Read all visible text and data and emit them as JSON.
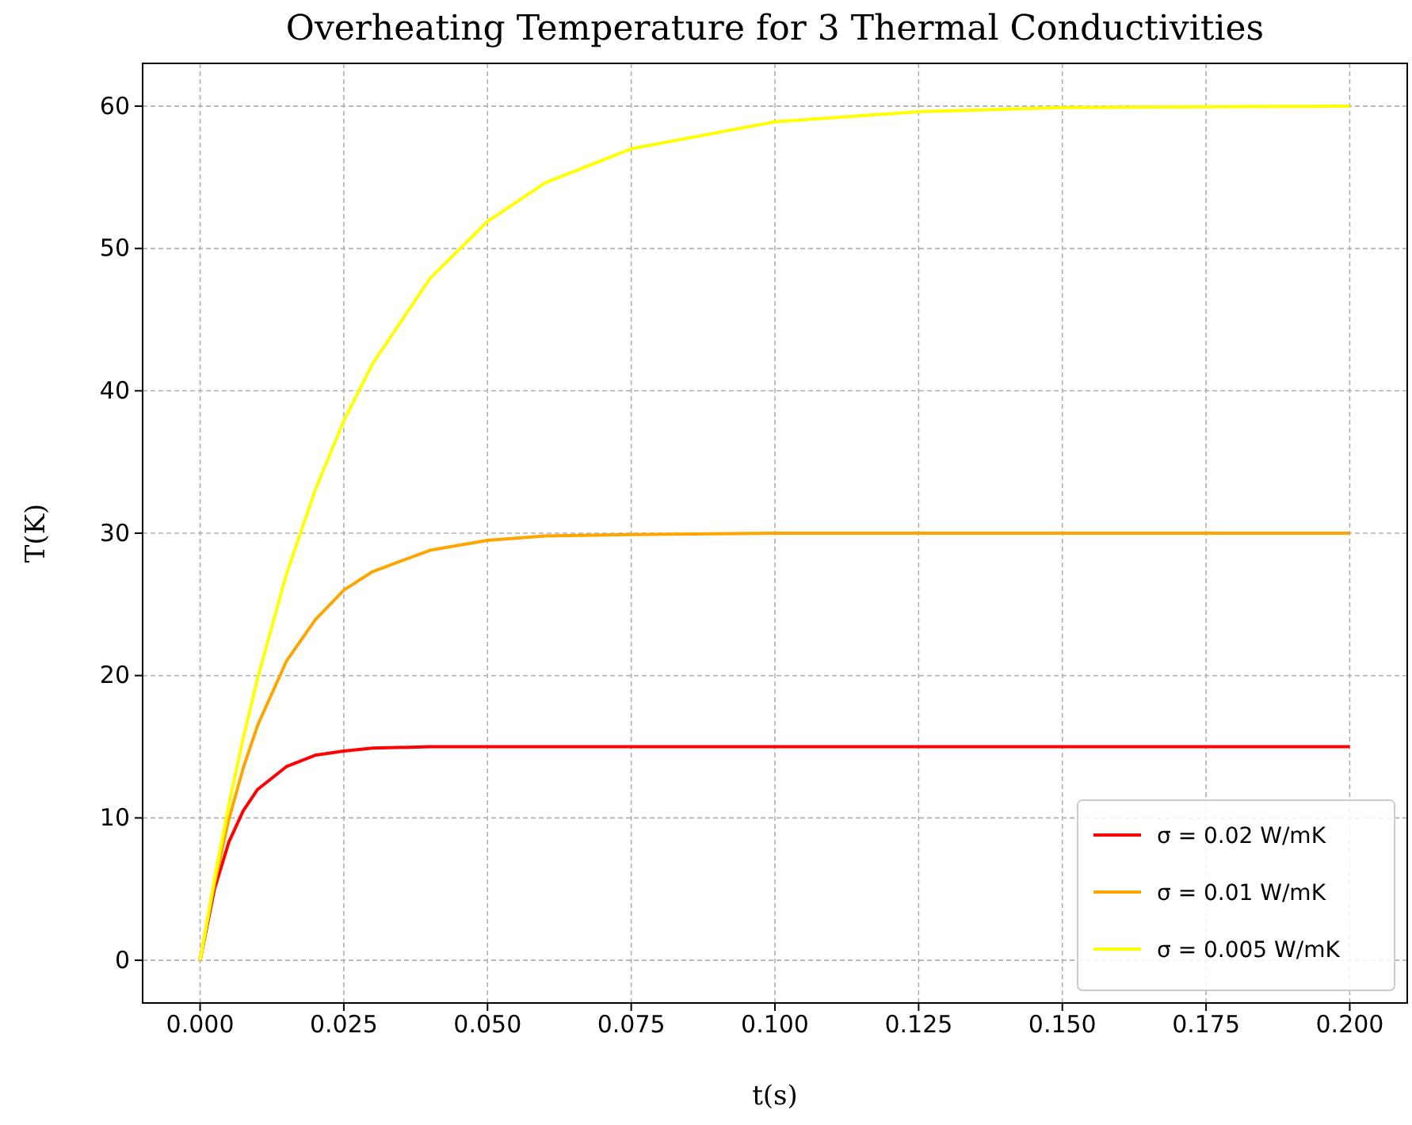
{
  "chart_data": {
    "type": "line",
    "title": "Overheating Temperature for 3 Thermal Conductivities",
    "xlabel": "t(s)",
    "ylabel": "T(K)",
    "x": [
      0,
      0.0025,
      0.005,
      0.0075,
      0.01,
      0.015,
      0.02,
      0.025,
      0.03,
      0.04,
      0.05,
      0.06,
      0.075,
      0.1,
      0.125,
      0.15,
      0.2
    ],
    "series": [
      {
        "name": "σ = 0.02 W/mK",
        "color": "#ff0000",
        "values": [
          0,
          5.0,
          8.3,
          10.5,
          12.0,
          13.6,
          14.4,
          14.7,
          14.9,
          15.0,
          15.0,
          15.0,
          15.0,
          15.0,
          15.0,
          15.0,
          15.0
        ]
      },
      {
        "name": "σ = 0.01 W/mK",
        "color": "#ffa500",
        "values": [
          0,
          5.4,
          9.9,
          13.5,
          16.5,
          21.0,
          23.9,
          26.0,
          27.3,
          28.8,
          29.5,
          29.8,
          29.9,
          30.0,
          30.0,
          30.0,
          30.0
        ]
      },
      {
        "name": "σ = 0.005 W/mK",
        "color": "#ffff00",
        "values": [
          0,
          5.7,
          10.9,
          15.6,
          19.8,
          27.1,
          33.0,
          37.9,
          41.9,
          47.9,
          51.9,
          54.6,
          57.0,
          58.9,
          59.6,
          59.9,
          60.0
        ]
      }
    ],
    "xlim": [
      -0.01,
      0.21
    ],
    "ylim": [
      -3,
      63
    ],
    "xticks": [
      {
        "value": 0,
        "label": "0.000"
      },
      {
        "value": 0.025,
        "label": "0.025"
      },
      {
        "value": 0.05,
        "label": "0.050"
      },
      {
        "value": 0.075,
        "label": "0.075"
      },
      {
        "value": 0.1,
        "label": "0.100"
      },
      {
        "value": 0.125,
        "label": "0.125"
      },
      {
        "value": 0.15,
        "label": "0.150"
      },
      {
        "value": 0.175,
        "label": "0.175"
      },
      {
        "value": 0.2,
        "label": "0.200"
      }
    ],
    "yticks": [
      0,
      10,
      20,
      30,
      40,
      50,
      60
    ],
    "grid": true,
    "legend": "bottom right",
    "line_style": "solid"
  }
}
